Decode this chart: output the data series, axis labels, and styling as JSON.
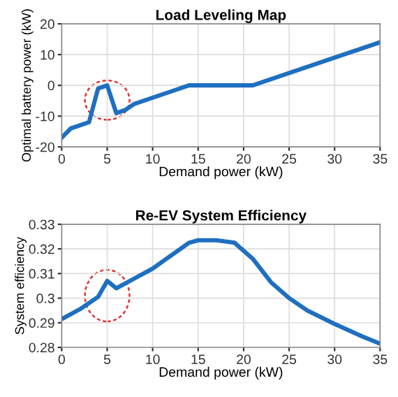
{
  "chart_data": [
    {
      "type": "line",
      "title": "Load Leveling Map",
      "xlabel": "Demand power (kW)",
      "ylabel": "Optimal battery power (kW)",
      "x": [
        0,
        1,
        3,
        4,
        5,
        6,
        7,
        8,
        14,
        21,
        35
      ],
      "series": [
        {
          "color": "#1f6fc0",
          "values": [
            -17,
            -14,
            -12,
            -1,
            0,
            -9,
            -8,
            -6,
            0,
            0,
            14
          ]
        }
      ],
      "xlim": [
        0,
        35
      ],
      "xticks": [
        0,
        5,
        10,
        15,
        20,
        25,
        30,
        35
      ],
      "ylim": [
        -20,
        20
      ],
      "yticks": [
        -20,
        -10,
        0,
        10,
        20
      ],
      "grid": true
    },
    {
      "type": "line",
      "title": "Re-EV System Efficiency",
      "xlabel": "Demand power (kW)",
      "ylabel": "System efficiency",
      "x": [
        0,
        2,
        4,
        5,
        6,
        8,
        10,
        14,
        15,
        17,
        19,
        21,
        23,
        25,
        27,
        30,
        33,
        35
      ],
      "series": [
        {
          "color": "#1f6fc0",
          "values": [
            0.2915,
            0.2955,
            0.3005,
            0.307,
            0.304,
            0.308,
            0.312,
            0.3225,
            0.3235,
            0.3235,
            0.3225,
            0.316,
            0.3065,
            0.3,
            0.295,
            0.2895,
            0.2845,
            0.2815
          ]
        }
      ],
      "xlim": [
        0,
        35
      ],
      "xticks": [
        0,
        5,
        10,
        15,
        20,
        25,
        30,
        35
      ],
      "ylim": [
        0.28,
        0.33
      ],
      "yticks": [
        0.28,
        0.29,
        0.3,
        0.31,
        0.32,
        0.33
      ],
      "grid": true
    }
  ]
}
